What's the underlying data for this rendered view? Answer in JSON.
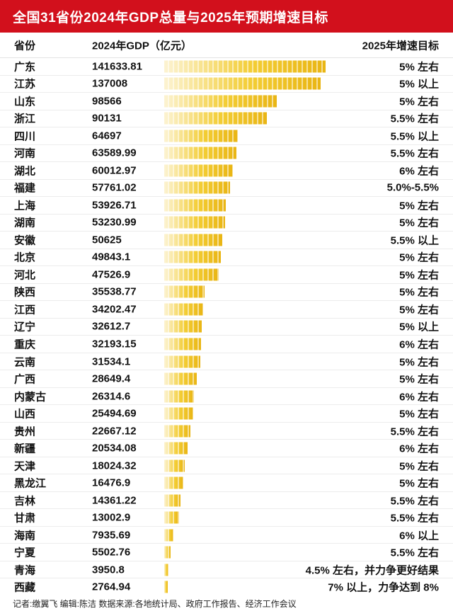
{
  "header": {
    "title": "全国31省份2024年GDP总量与2025年预期增速目标"
  },
  "table": {
    "col_province": "省份",
    "col_gdp": "2024年GDP（亿元）",
    "col_target": "2025年增速目标"
  },
  "footer": {
    "credits": "记者:缴翼飞 编辑:陈洁 数据来源:各地统计局、政府工作报告、经济工作会议"
  },
  "colors": {
    "accent_red": "#d2101c",
    "bar_gold": "#e9b514",
    "bar_light": "#fcf3d2"
  },
  "chart_data": {
    "type": "bar",
    "title": "全国31省份2024年GDP总量与2025年预期增速目标",
    "xlabel": "2024年GDP（亿元）",
    "ylabel": "省份",
    "unit": "亿元",
    "xlim": [
      0,
      141633.81
    ],
    "legend": "none",
    "grid": false,
    "categories": [
      "广东",
      "江苏",
      "山东",
      "浙江",
      "四川",
      "河南",
      "湖北",
      "福建",
      "上海",
      "湖南",
      "安徽",
      "北京",
      "河北",
      "陕西",
      "江西",
      "辽宁",
      "重庆",
      "云南",
      "广西",
      "内蒙古",
      "山西",
      "贵州",
      "新疆",
      "天津",
      "黑龙江",
      "吉林",
      "甘肃",
      "海南",
      "宁夏",
      "青海",
      "西藏"
    ],
    "values": [
      141633.81,
      137008,
      98566,
      90131,
      64697,
      63589.99,
      60012.97,
      57761.02,
      53926.71,
      53230.99,
      50625,
      49843.1,
      47526.9,
      35538.77,
      34202.47,
      32612.7,
      32193.15,
      31534.1,
      28649.4,
      26314.6,
      25494.69,
      22667.12,
      20534.08,
      18024.32,
      16476.9,
      14361.22,
      13002.9,
      7935.69,
      5502.76,
      3950.8,
      2764.94
    ],
    "targets": [
      "5% 左右",
      "5% 以上",
      "5% 左右",
      "5.5% 左右",
      "5.5% 以上",
      "5.5% 左右",
      "6% 左右",
      "5.0%-5.5%",
      "5% 左右",
      "5% 左右",
      "5.5% 以上",
      "5% 左右",
      "5% 左右",
      "5% 左右",
      "5% 左右",
      "5% 以上",
      "6% 左右",
      "5% 左右",
      "5% 左右",
      "6% 左右",
      "5% 左右",
      "5.5% 左右",
      "6% 左右",
      "5% 左右",
      "5% 左右",
      "5.5% 左右",
      "5.5% 左右",
      "6% 以上",
      "5.5% 左右",
      "4.5% 左右，并力争更好结果",
      "7% 以上，力争达到 8%"
    ]
  }
}
